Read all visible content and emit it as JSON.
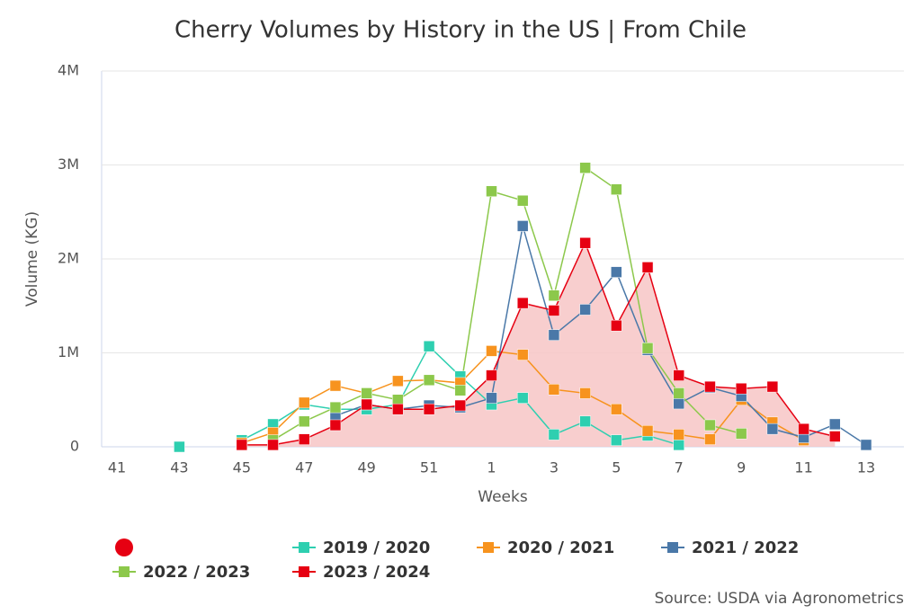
{
  "chart_data": {
    "type": "line",
    "title": "Cherry Volumes by History in the US | From Chile",
    "x_label": "Weeks",
    "y_label": "Volume (KG)",
    "source": "Source: USDA via Agronometrics",
    "categories": [
      "41",
      null,
      "43",
      null,
      "45",
      null,
      "47",
      null,
      "49",
      null,
      "51",
      null,
      "1",
      null,
      "3",
      null,
      "5",
      null,
      "7",
      null,
      "9",
      null,
      "11",
      null,
      "13"
    ],
    "ylim": [
      0,
      4000000
    ],
    "yticks": [
      0,
      {
        "value": 1000000,
        "label": "1M"
      },
      {
        "value": 2000000,
        "label": "2M"
      },
      {
        "value": 3000000,
        "label": "3M"
      },
      {
        "value": 4000000,
        "label": "4M"
      }
    ],
    "grid": true,
    "series": [
      {
        "name": "2019 / 2020",
        "color": "#2ecfb0",
        "values": [
          null,
          null,
          0,
          null,
          70000,
          240000,
          450000,
          400000,
          400000,
          450000,
          1070000,
          750000,
          450000,
          520000,
          130000,
          270000,
          70000,
          120000,
          20000,
          null,
          null,
          null,
          null,
          null,
          null
        ]
      },
      {
        "name": "2020 / 2021",
        "color": "#f7931e",
        "values": [
          null,
          null,
          null,
          null,
          40000,
          150000,
          470000,
          650000,
          570000,
          700000,
          710000,
          680000,
          1020000,
          980000,
          610000,
          570000,
          400000,
          170000,
          130000,
          80000,
          500000,
          260000,
          70000,
          null,
          null
        ]
      },
      {
        "name": "2021 / 2022",
        "color": "#4a78a8",
        "values": [
          null,
          null,
          null,
          null,
          null,
          null,
          null,
          330000,
          450000,
          400000,
          440000,
          420000,
          520000,
          2350000,
          1190000,
          1460000,
          1860000,
          1030000,
          460000,
          630000,
          540000,
          190000,
          100000,
          240000,
          20000
        ]
      },
      {
        "name": "2022 / 2023",
        "color": "#8cc84b",
        "values": [
          null,
          null,
          null,
          null,
          null,
          70000,
          270000,
          420000,
          570000,
          500000,
          710000,
          600000,
          2720000,
          2620000,
          1610000,
          2970000,
          2740000,
          1050000,
          570000,
          230000,
          140000,
          null,
          null,
          null,
          null
        ]
      },
      {
        "name": "2023 / 2024",
        "color": "#e60012",
        "area_color": "#f7c6c6",
        "values": [
          null,
          null,
          null,
          null,
          20000,
          20000,
          80000,
          230000,
          450000,
          400000,
          400000,
          440000,
          760000,
          1530000,
          1450000,
          2170000,
          1290000,
          1910000,
          760000,
          640000,
          620000,
          640000,
          190000,
          110000,
          null
        ]
      }
    ]
  }
}
